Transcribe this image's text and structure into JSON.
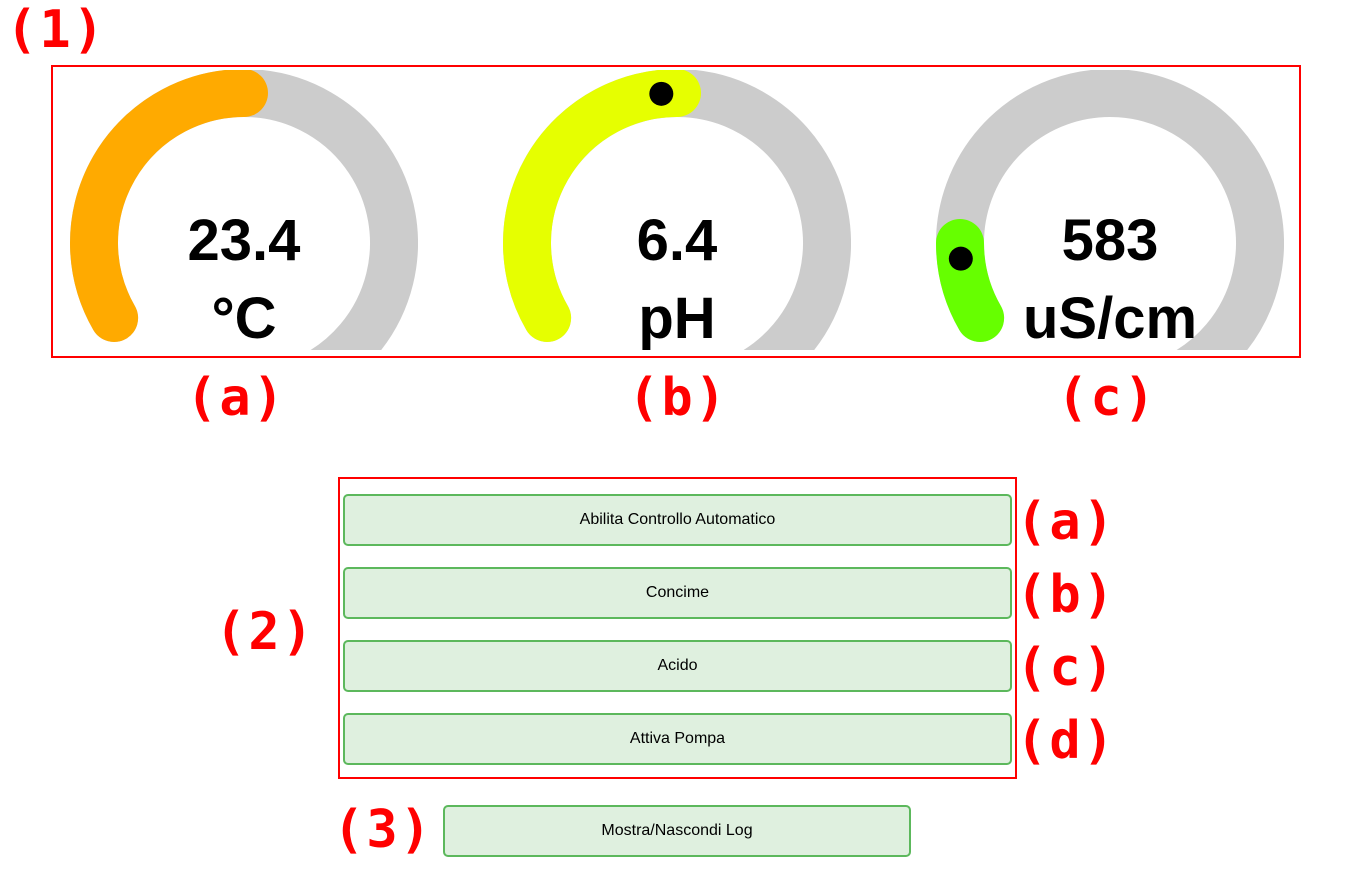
{
  "annotations": {
    "section1": "(1)",
    "section2": "(2)",
    "section3": "(3)",
    "gauge_a": "(a)",
    "gauge_b": "(b)",
    "gauge_c": "(c)",
    "button_a": "(a)",
    "button_b": "(b)",
    "button_c": "(c)",
    "button_d": "(d)"
  },
  "gauges": [
    {
      "value": "23.4",
      "unit": "°C",
      "fill_fraction": 0.4,
      "color": "#ffaa00",
      "marker": false
    },
    {
      "value": "6.4",
      "unit": "pH",
      "fill_fraction": 0.4,
      "color": "#e6ff00",
      "marker": true
    },
    {
      "value": "583",
      "unit": "uS/cm",
      "fill_fraction": 0.1,
      "color": "#66ff00",
      "marker": true
    }
  ],
  "gauge_track_color": "#cccccc",
  "buttons": {
    "auto_control": "Abilita Controllo Automatico",
    "fertilizer": "Concime",
    "acid": "Acido",
    "pump": "Attiva Pompa",
    "log_toggle": "Mostra/Nascondi Log"
  },
  "colors": {
    "annotation": "#ff0000",
    "button_bg": "#dff0df",
    "button_border": "#5cb85c"
  }
}
